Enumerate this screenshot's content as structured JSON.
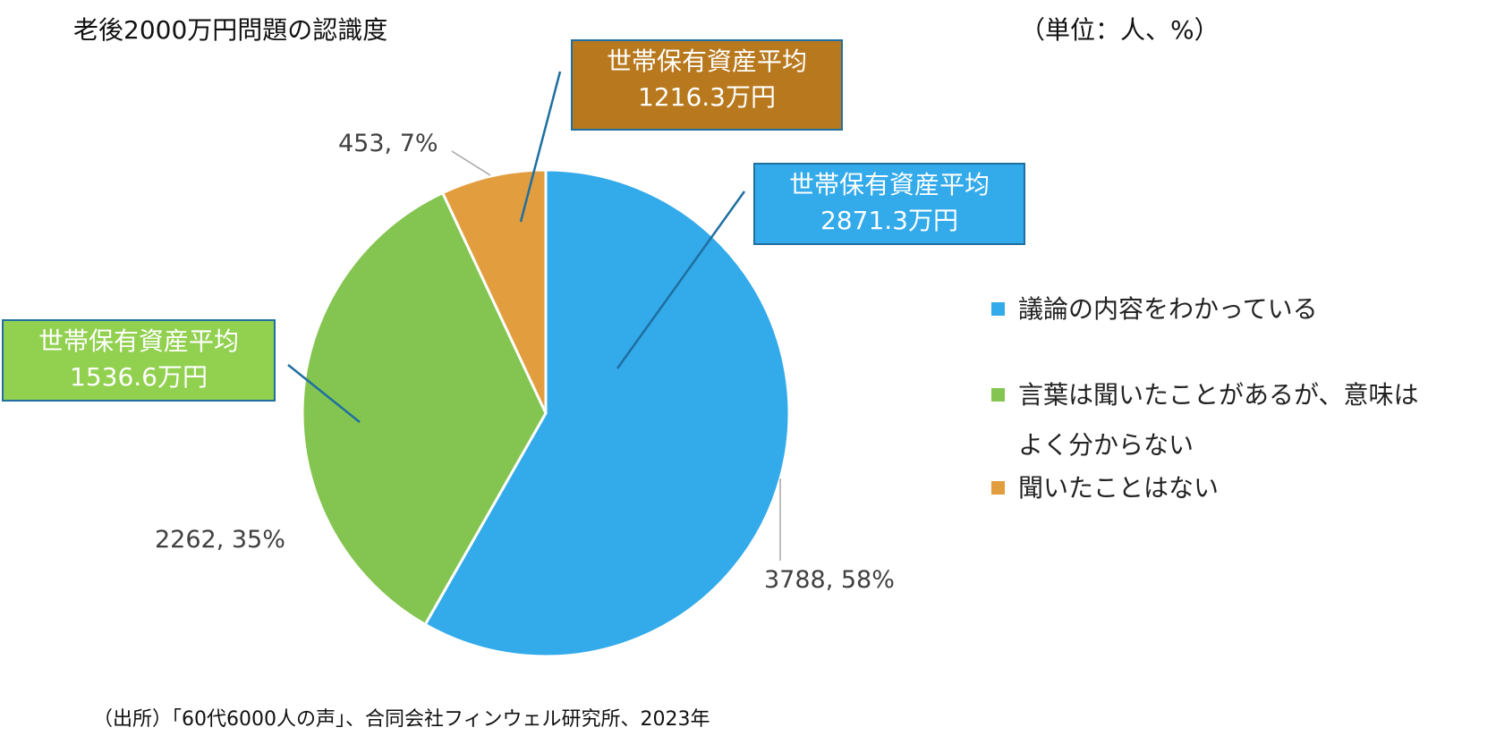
{
  "title": "老後2000万円問題の認識度",
  "unit": "（単位：人、%）",
  "source": "（出所）「60代6000人の声」、合同会社フィンウェル研究所、2023年",
  "chart_data": {
    "type": "pie",
    "categories": [
      "議論の内容をわかっている",
      "言葉は聞いたことがあるが、意味はよく分からない",
      "聞いたことはない"
    ],
    "values": [
      3788,
      2262,
      453
    ],
    "percentages": [
      58,
      35,
      7
    ],
    "data_labels": [
      "3788, 58%",
      "2262, 35%",
      "453, 7%"
    ],
    "colors": [
      "#33aaea",
      "#84c450",
      "#e29d3f"
    ],
    "legend_placement": "right",
    "callouts": [
      {
        "line1": "世帯保有資産平均",
        "line2": "2871.3万円",
        "category": "議論の内容をわかっている",
        "color": "#33aaea"
      },
      {
        "line1": "世帯保有資産平均",
        "line2": "1536.6万円",
        "category": "言葉は聞いたことがあるが、意味はよく分からない",
        "color": "#92d050"
      },
      {
        "line1": "世帯保有資産平均",
        "line2": "1216.3万円",
        "category": "聞いたことはない",
        "color": "#b8791e"
      }
    ]
  },
  "legend": {
    "items": [
      {
        "label": "議論の内容をわかっている",
        "color": "#33aaea"
      },
      {
        "label": "言葉は聞いたことがあるが、意味はよく分からない",
        "color": "#84c450"
      },
      {
        "label": "聞いたことはない",
        "color": "#e29d3f"
      }
    ]
  }
}
